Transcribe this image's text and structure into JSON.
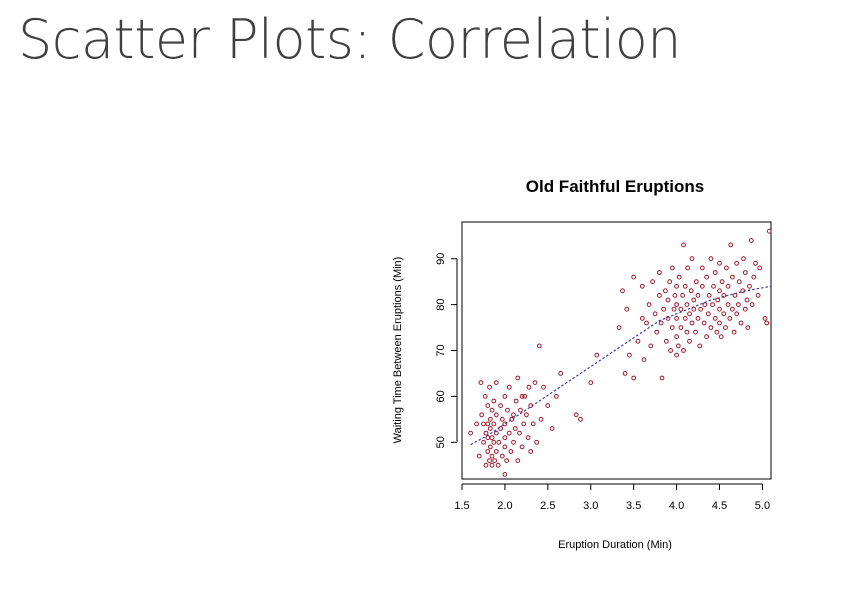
{
  "slide": {
    "title": "Scatter Plots: Correlation"
  },
  "chart_data": {
    "type": "scatter",
    "title": "Old Faithful Eruptions",
    "xlabel": "Eruption Duration (Min)",
    "ylabel": "Waiting Time Between Eruptions (Min)",
    "xlim": [
      1.5,
      5.1
    ],
    "ylim": [
      42,
      98
    ],
    "xticks": [
      1.5,
      2.0,
      2.5,
      3.0,
      3.5,
      4.0,
      4.5,
      5.0
    ],
    "xtick_labels": [
      "1.5",
      "2.0",
      "2.5",
      "3.0",
      "3.5",
      "4.0",
      "4.5",
      "5.0"
    ],
    "yticks": [
      50,
      60,
      70,
      80,
      90
    ],
    "ytick_labels": [
      "50",
      "60",
      "70",
      "80",
      "90"
    ],
    "grid": false,
    "colors": {
      "points": "#9b1c2c",
      "trend": "#3b3bb0"
    },
    "points": [
      [
        1.6,
        52
      ],
      [
        1.67,
        54
      ],
      [
        1.7,
        47
      ],
      [
        1.72,
        63
      ],
      [
        1.73,
        56
      ],
      [
        1.75,
        50
      ],
      [
        1.75,
        54
      ],
      [
        1.77,
        60
      ],
      [
        1.78,
        45
      ],
      [
        1.78,
        52
      ],
      [
        1.8,
        48
      ],
      [
        1.8,
        51
      ],
      [
        1.8,
        54
      ],
      [
        1.8,
        58
      ],
      [
        1.82,
        46
      ],
      [
        1.82,
        62
      ],
      [
        1.83,
        49
      ],
      [
        1.83,
        53
      ],
      [
        1.83,
        55
      ],
      [
        1.85,
        45
      ],
      [
        1.85,
        47
      ],
      [
        1.85,
        51
      ],
      [
        1.85,
        57
      ],
      [
        1.87,
        50
      ],
      [
        1.87,
        54
      ],
      [
        1.87,
        59
      ],
      [
        1.88,
        46
      ],
      [
        1.9,
        48
      ],
      [
        1.9,
        52
      ],
      [
        1.9,
        56
      ],
      [
        1.9,
        63
      ],
      [
        1.92,
        45
      ],
      [
        1.93,
        50
      ],
      [
        1.95,
        53
      ],
      [
        1.95,
        58
      ],
      [
        1.97,
        47
      ],
      [
        1.97,
        55
      ],
      [
        2.0,
        43
      ],
      [
        2.0,
        49
      ],
      [
        2.0,
        51
      ],
      [
        2.0,
        54
      ],
      [
        2.0,
        60
      ],
      [
        2.02,
        46
      ],
      [
        2.03,
        57
      ],
      [
        2.05,
        52
      ],
      [
        2.05,
        62
      ],
      [
        2.07,
        48
      ],
      [
        2.08,
        55
      ],
      [
        2.1,
        50
      ],
      [
        2.1,
        56
      ],
      [
        2.12,
        53
      ],
      [
        2.13,
        59
      ],
      [
        2.15,
        46
      ],
      [
        2.15,
        64
      ],
      [
        2.17,
        52
      ],
      [
        2.18,
        57
      ],
      [
        2.2,
        49
      ],
      [
        2.2,
        60
      ],
      [
        2.22,
        54
      ],
      [
        2.23,
        60
      ],
      [
        2.25,
        56
      ],
      [
        2.27,
        51
      ],
      [
        2.28,
        62
      ],
      [
        2.3,
        48
      ],
      [
        2.3,
        58
      ],
      [
        2.33,
        54
      ],
      [
        2.35,
        63
      ],
      [
        2.37,
        50
      ],
      [
        2.4,
        71
      ],
      [
        2.42,
        55
      ],
      [
        2.45,
        62
      ],
      [
        2.5,
        58
      ],
      [
        2.55,
        53
      ],
      [
        2.6,
        60
      ],
      [
        2.65,
        65
      ],
      [
        2.83,
        56
      ],
      [
        2.88,
        55
      ],
      [
        3.0,
        63
      ],
      [
        3.07,
        69
      ],
      [
        3.33,
        75
      ],
      [
        3.37,
        83
      ],
      [
        3.4,
        65
      ],
      [
        3.42,
        79
      ],
      [
        3.45,
        69
      ],
      [
        3.5,
        64
      ],
      [
        3.5,
        86
      ],
      [
        3.55,
        72
      ],
      [
        3.6,
        84
      ],
      [
        3.6,
        77
      ],
      [
        3.62,
        68
      ],
      [
        3.65,
        76
      ],
      [
        3.68,
        80
      ],
      [
        3.7,
        71
      ],
      [
        3.72,
        85
      ],
      [
        3.75,
        78
      ],
      [
        3.77,
        74
      ],
      [
        3.8,
        82
      ],
      [
        3.8,
        87
      ],
      [
        3.82,
        76
      ],
      [
        3.83,
        64
      ],
      [
        3.85,
        79
      ],
      [
        3.87,
        83
      ],
      [
        3.88,
        72
      ],
      [
        3.9,
        77
      ],
      [
        3.9,
        81
      ],
      [
        3.92,
        85
      ],
      [
        3.93,
        70
      ],
      [
        3.95,
        75
      ],
      [
        3.95,
        88
      ],
      [
        3.97,
        79
      ],
      [
        3.98,
        82
      ],
      [
        4.0,
        69
      ],
      [
        4.0,
        73
      ],
      [
        4.0,
        77
      ],
      [
        4.0,
        80
      ],
      [
        4.0,
        84
      ],
      [
        4.02,
        71
      ],
      [
        4.03,
        86
      ],
      [
        4.05,
        75
      ],
      [
        4.05,
        79
      ],
      [
        4.07,
        82
      ],
      [
        4.08,
        70
      ],
      [
        4.08,
        93
      ],
      [
        4.1,
        77
      ],
      [
        4.1,
        84
      ],
      [
        4.12,
        74
      ],
      [
        4.12,
        80
      ],
      [
        4.13,
        88
      ],
      [
        4.15,
        72
      ],
      [
        4.15,
        78
      ],
      [
        4.17,
        83
      ],
      [
        4.18,
        76
      ],
      [
        4.18,
        90
      ],
      [
        4.2,
        79
      ],
      [
        4.2,
        81
      ],
      [
        4.22,
        74
      ],
      [
        4.23,
        85
      ],
      [
        4.25,
        77
      ],
      [
        4.25,
        82
      ],
      [
        4.27,
        71
      ],
      [
        4.28,
        79
      ],
      [
        4.3,
        84
      ],
      [
        4.3,
        88
      ],
      [
        4.32,
        76
      ],
      [
        4.33,
        80
      ],
      [
        4.35,
        73
      ],
      [
        4.35,
        86
      ],
      [
        4.37,
        78
      ],
      [
        4.38,
        82
      ],
      [
        4.4,
        75
      ],
      [
        4.4,
        90
      ],
      [
        4.42,
        80
      ],
      [
        4.43,
        84
      ],
      [
        4.45,
        77
      ],
      [
        4.45,
        87
      ],
      [
        4.47,
        74
      ],
      [
        4.48,
        81
      ],
      [
        4.5,
        76
      ],
      [
        4.5,
        79
      ],
      [
        4.5,
        83
      ],
      [
        4.5,
        89
      ],
      [
        4.52,
        73
      ],
      [
        4.53,
        85
      ],
      [
        4.55,
        78
      ],
      [
        4.55,
        82
      ],
      [
        4.57,
        75
      ],
      [
        4.58,
        88
      ],
      [
        4.6,
        80
      ],
      [
        4.6,
        84
      ],
      [
        4.62,
        77
      ],
      [
        4.63,
        93
      ],
      [
        4.65,
        79
      ],
      [
        4.65,
        86
      ],
      [
        4.67,
        74
      ],
      [
        4.68,
        82
      ],
      [
        4.7,
        78
      ],
      [
        4.7,
        89
      ],
      [
        4.72,
        80
      ],
      [
        4.73,
        85
      ],
      [
        4.75,
        76
      ],
      [
        4.77,
        83
      ],
      [
        4.78,
        90
      ],
      [
        4.8,
        79
      ],
      [
        4.8,
        87
      ],
      [
        4.82,
        81
      ],
      [
        4.83,
        75
      ],
      [
        4.85,
        84
      ],
      [
        4.87,
        94
      ],
      [
        4.88,
        80
      ],
      [
        4.9,
        86
      ],
      [
        4.92,
        89
      ],
      [
        4.95,
        82
      ],
      [
        4.97,
        88
      ],
      [
        5.03,
        77
      ],
      [
        5.05,
        76
      ],
      [
        5.08,
        96
      ]
    ],
    "trend": [
      [
        1.6,
        49.5
      ],
      [
        1.8,
        51.5
      ],
      [
        2.0,
        54
      ],
      [
        2.2,
        56.5
      ],
      [
        2.4,
        59
      ],
      [
        2.6,
        61.5
      ],
      [
        2.8,
        64
      ],
      [
        3.0,
        66.5
      ],
      [
        3.2,
        69
      ],
      [
        3.4,
        71.5
      ],
      [
        3.6,
        74
      ],
      [
        3.8,
        76.5
      ],
      [
        4.0,
        78
      ],
      [
        4.2,
        79.5
      ],
      [
        4.4,
        81
      ],
      [
        4.6,
        82
      ],
      [
        4.8,
        83
      ],
      [
        5.1,
        84
      ]
    ]
  }
}
